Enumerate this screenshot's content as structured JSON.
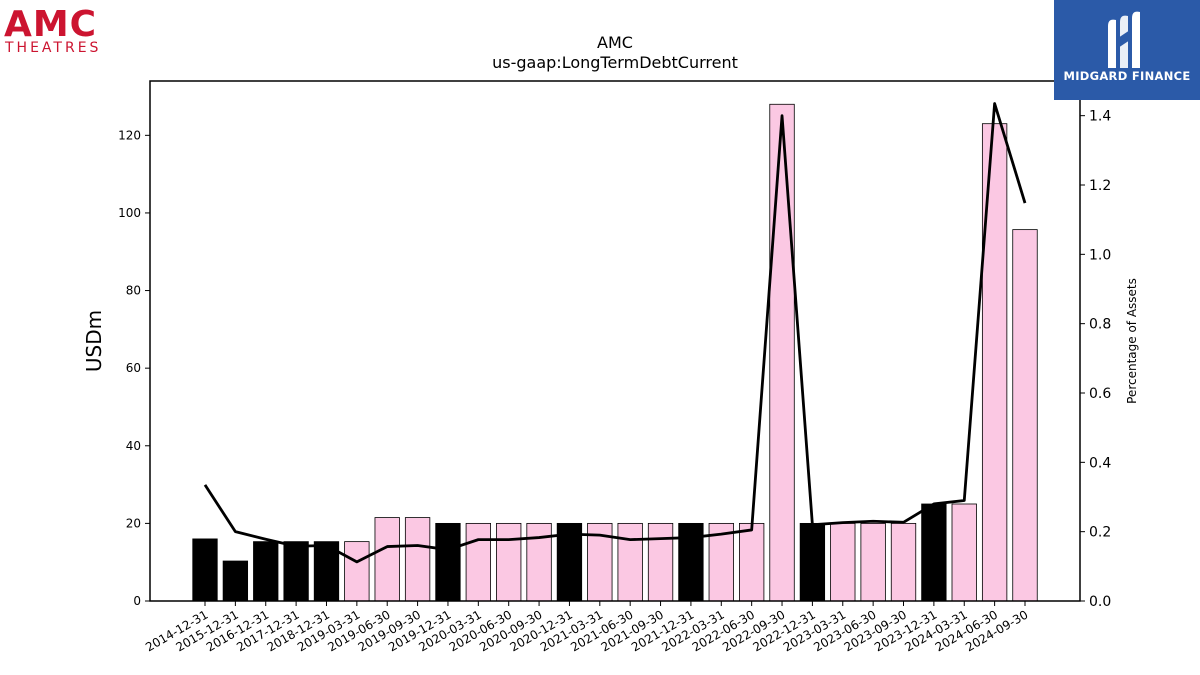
{
  "logos": {
    "left": {
      "main": "AMC",
      "sub": "THEATRES"
    },
    "right": {
      "text": "MIDGARD FINANCE"
    }
  },
  "chart_data": {
    "type": "bar",
    "title": "AMC",
    "subtitle": "us-gaap:LongTermDebtCurrent",
    "ylabel": "USDm",
    "y2label": "Percentage of Assets",
    "ylim": [
      0,
      134
    ],
    "y2lim": [
      0,
      1.5
    ],
    "yticks": [
      0,
      20,
      40,
      60,
      80,
      100,
      120
    ],
    "y2ticks": [
      "0.0",
      "0.2",
      "0.4",
      "0.6",
      "0.8",
      "1.0",
      "1.2",
      "1.4"
    ],
    "categories": [
      "2014-12-31",
      "2015-12-31",
      "2016-12-31",
      "2017-12-31",
      "2018-12-31",
      "2019-03-31",
      "2019-06-30",
      "2019-09-30",
      "2019-12-31",
      "2020-03-31",
      "2020-06-30",
      "2020-09-30",
      "2020-12-31",
      "2021-03-31",
      "2021-06-30",
      "2021-09-30",
      "2021-12-31",
      "2022-03-31",
      "2022-06-30",
      "2022-09-30",
      "2022-12-31",
      "2023-03-31",
      "2023-06-30",
      "2023-09-30",
      "2023-12-31",
      "2024-03-31",
      "2024-06-30",
      "2024-09-30"
    ],
    "series": [
      {
        "type": "bar",
        "values": [
          16,
          10.3,
          15.3,
          15.3,
          15.3,
          15.3,
          21.5,
          21.5,
          20,
          20,
          20,
          20,
          20,
          20,
          20,
          20,
          20,
          20,
          20,
          128,
          20,
          20,
          20,
          20,
          25,
          25,
          123,
          95.7
        ],
        "annual_color": "#000000",
        "quarterly_color": "#fbc8e3",
        "annual_flags": [
          true,
          true,
          true,
          true,
          true,
          false,
          false,
          false,
          true,
          false,
          false,
          false,
          true,
          false,
          false,
          false,
          true,
          false,
          false,
          false,
          true,
          false,
          false,
          false,
          true,
          false,
          false,
          false
        ]
      },
      {
        "type": "line",
        "axis": "right",
        "color": "#000000",
        "values": [
          0.335,
          0.2,
          0.178,
          0.158,
          0.16,
          0.113,
          0.157,
          0.16,
          0.148,
          0.177,
          0.177,
          0.183,
          0.193,
          0.19,
          0.177,
          0.18,
          0.183,
          0.193,
          0.205,
          1.4,
          0.22,
          0.226,
          0.23,
          0.227,
          0.28,
          0.29,
          1.435,
          1.148
        ]
      }
    ]
  }
}
